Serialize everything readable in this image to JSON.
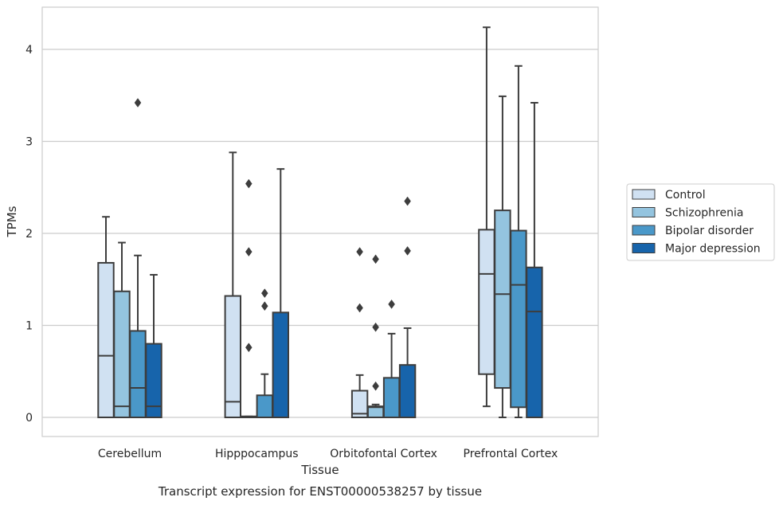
{
  "chart_data": {
    "type": "box",
    "caption": "Transcript expression for ENST00000538257 by tissue",
    "xlabel": "Tissue",
    "ylabel": "TPMs",
    "ylim": [
      -0.2,
      4.45
    ],
    "yticks": [
      0,
      1,
      2,
      3,
      4
    ],
    "grid": "horizontal",
    "legend_placement": "right",
    "categories": [
      "Cerebellum",
      "Hipppocampus",
      "Orbitofontal Cortex",
      "Prefrontal Cortex"
    ],
    "series": [
      {
        "name": "Control",
        "color": "#d0e1f2",
        "boxes": [
          {
            "lower_whisker": 0.0,
            "q1": 0.0,
            "median": 0.67,
            "q3": 1.68,
            "upper_whisker": 2.18,
            "outliers": []
          },
          {
            "lower_whisker": 0.0,
            "q1": 0.0,
            "median": 0.17,
            "q3": 1.32,
            "upper_whisker": 2.88,
            "outliers": []
          },
          {
            "lower_whisker": 0.0,
            "q1": 0.0,
            "median": 0.04,
            "q3": 0.29,
            "upper_whisker": 0.46,
            "outliers": [
              1.19,
              1.8
            ]
          },
          {
            "lower_whisker": 0.12,
            "q1": 0.47,
            "median": 1.56,
            "q3": 2.04,
            "upper_whisker": 4.24,
            "outliers": []
          }
        ]
      },
      {
        "name": "Schizophrenia",
        "color": "#94c4df",
        "boxes": [
          {
            "lower_whisker": 0.0,
            "q1": 0.0,
            "median": 0.12,
            "q3": 1.37,
            "upper_whisker": 1.9,
            "outliers": []
          },
          {
            "lower_whisker": 0.0,
            "q1": 0.0,
            "median": 0.01,
            "q3": 0.01,
            "upper_whisker": 0.01,
            "outliers": [
              0.76,
              1.8,
              2.54
            ]
          },
          {
            "lower_whisker": 0.0,
            "q1": 0.0,
            "median": 0.11,
            "q3": 0.12,
            "upper_whisker": 0.14,
            "outliers": [
              0.34,
              0.98,
              1.72
            ]
          },
          {
            "lower_whisker": 0.0,
            "q1": 0.32,
            "median": 1.34,
            "q3": 2.25,
            "upper_whisker": 3.49,
            "outliers": []
          }
        ]
      },
      {
        "name": "Bipolar disorder",
        "color": "#4a98c9",
        "boxes": [
          {
            "lower_whisker": 0.0,
            "q1": 0.0,
            "median": 0.32,
            "q3": 0.94,
            "upper_whisker": 1.76,
            "outliers": [
              3.42
            ]
          },
          {
            "lower_whisker": 0.0,
            "q1": 0.0,
            "median": 0.0,
            "q3": 0.24,
            "upper_whisker": 0.47,
            "outliers": [
              1.21,
              1.35
            ]
          },
          {
            "lower_whisker": 0.0,
            "q1": 0.0,
            "median": 0.0,
            "q3": 0.43,
            "upper_whisker": 0.91,
            "outliers": [
              1.23
            ]
          },
          {
            "lower_whisker": 0.0,
            "q1": 0.11,
            "median": 1.44,
            "q3": 2.03,
            "upper_whisker": 3.82,
            "outliers": []
          }
        ]
      },
      {
        "name": "Major depression",
        "color": "#1764ab",
        "boxes": [
          {
            "lower_whisker": 0.0,
            "q1": 0.0,
            "median": 0.12,
            "q3": 0.8,
            "upper_whisker": 1.55,
            "outliers": []
          },
          {
            "lower_whisker": 0.0,
            "q1": 0.0,
            "median": 0.0,
            "q3": 1.14,
            "upper_whisker": 2.7,
            "outliers": []
          },
          {
            "lower_whisker": 0.0,
            "q1": 0.0,
            "median": 0.0,
            "q3": 0.57,
            "upper_whisker": 0.97,
            "outliers": [
              1.81,
              2.35
            ]
          },
          {
            "lower_whisker": 0.0,
            "q1": 0.0,
            "median": 1.15,
            "q3": 1.63,
            "upper_whisker": 3.42,
            "outliers": []
          }
        ]
      }
    ]
  }
}
